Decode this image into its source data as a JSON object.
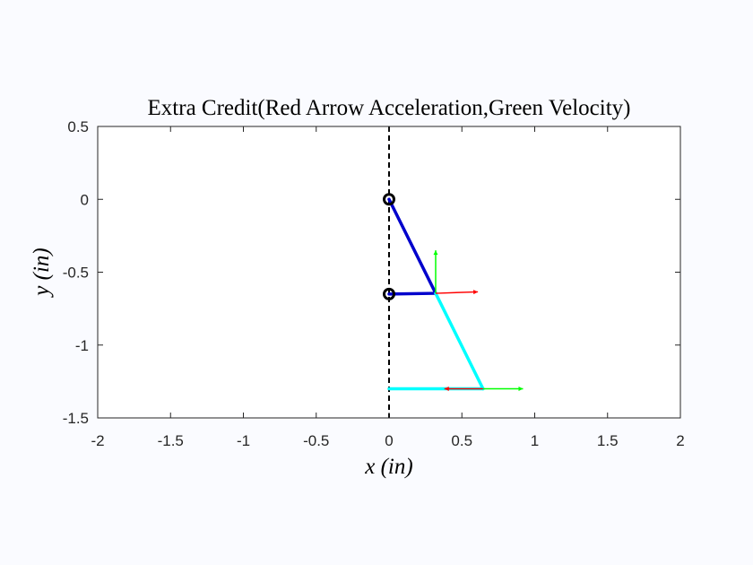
{
  "chart_data": {
    "type": "line",
    "title": "Extra Credit(Red Arrow Acceleration,Green Velocity)",
    "xlabel": "x (in)",
    "ylabel": "y (in)",
    "xlim": [
      -2,
      2
    ],
    "ylim": [
      -1.5,
      0.5
    ],
    "xticks": [
      -2,
      -1.5,
      -1,
      -0.5,
      0,
      0.5,
      1,
      1.5,
      2
    ],
    "xtick_labels": [
      "-2",
      "-1.5",
      "-1",
      "-0.5",
      "0",
      "0.5",
      "1",
      "1.5",
      "2"
    ],
    "yticks": [
      0.5,
      0,
      -0.5,
      -1,
      -1.5
    ],
    "ytick_labels": [
      "0.5",
      "0",
      "-0.5",
      "-1",
      "-1.5"
    ],
    "grid": false,
    "reference_line": {
      "x": 0,
      "style": "dashed",
      "color": "#000000"
    },
    "series": [
      {
        "key": "link-crank",
        "x": [
          0,
          0.32
        ],
        "y": [
          0,
          -0.645
        ],
        "color": "#0000cc"
      },
      {
        "key": "link-short",
        "x": [
          0,
          0.32
        ],
        "y": [
          -0.65,
          -0.645
        ],
        "color": "#0000cc"
      },
      {
        "key": "link-coupler",
        "x": [
          0.32,
          0.645
        ],
        "y": [
          -0.645,
          -1.3
        ],
        "color": "#00ffff"
      },
      {
        "key": "link-slider",
        "x": [
          0,
          0.645
        ],
        "y": [
          -1.3,
          -1.3
        ],
        "color": "#00ffff"
      }
    ],
    "pivots": [
      {
        "x": 0,
        "y": 0
      },
      {
        "x": 0,
        "y": -0.65
      }
    ],
    "vectors": [
      {
        "key": "velocity-1",
        "x": [
          0.32,
          0.32
        ],
        "y": [
          -0.645,
          -0.35
        ],
        "color": "#00ff00"
      },
      {
        "key": "acceleration-1",
        "x": [
          0.32,
          0.61
        ],
        "y": [
          -0.645,
          -0.635
        ],
        "color": "#ff0000"
      },
      {
        "key": "velocity-2",
        "x": [
          0.645,
          0.92
        ],
        "y": [
          -1.3,
          -1.3
        ],
        "color": "#00ff00"
      },
      {
        "key": "acceleration-2",
        "x": [
          0.645,
          0.38
        ],
        "y": [
          -1.3,
          -1.3
        ],
        "color": "#ff0000"
      }
    ]
  }
}
